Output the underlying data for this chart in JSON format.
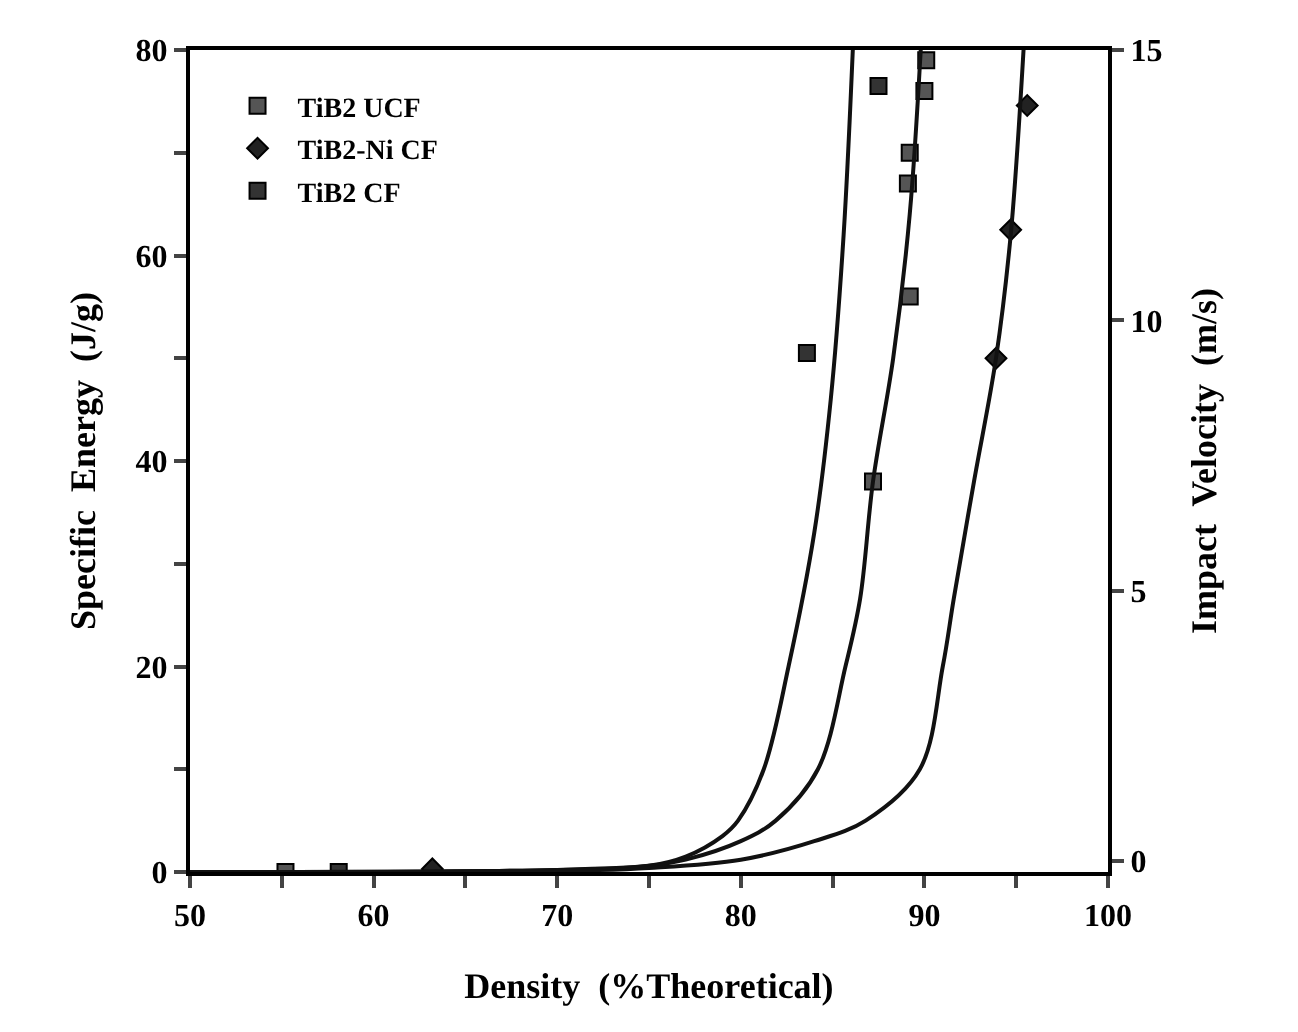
{
  "chart_data": {
    "type": "scatter",
    "xlabel": "Density  (%Theoretical)",
    "ylabel": "Specific  Energy  (J/g)",
    "y2label": "Impact  Velocity  (m/s)",
    "xlim": [
      50,
      100
    ],
    "xticks": [
      50,
      {
        "value": 55,
        "label": null
      },
      60,
      {
        "value": 65,
        "label": null
      },
      70,
      {
        "value": 75,
        "label": null
      },
      80,
      {
        "value": 85,
        "label": null
      },
      90,
      {
        "value": 95,
        "label": null
      },
      100
    ],
    "ylim": [
      0,
      80
    ],
    "yticks": [
      0,
      {
        "value": 10,
        "label": null
      },
      20,
      {
        "value": 30,
        "label": null
      },
      40,
      {
        "value": 50,
        "label": null
      },
      60,
      {
        "value": 70,
        "label": null
      },
      80
    ],
    "y2lim": [
      -0.2,
      15
    ],
    "y2ticks": [
      0,
      5,
      10,
      15
    ],
    "legend": "top left",
    "series": [
      {
        "name": "TiB2 UCF",
        "marker": "square",
        "color": "#555555",
        "x": [
          55.2,
          87.2,
          89.2,
          89.1,
          89.2,
          90.0,
          90.1
        ],
        "values": [
          0,
          38,
          56,
          67,
          70,
          76,
          79
        ]
      },
      {
        "name": "TiB2-Ni CF",
        "marker": "diamond",
        "color": "#222222",
        "x": [
          63.2,
          93.9,
          94.7,
          95.6
        ],
        "values": [
          0.3,
          50,
          62.5,
          74.6
        ]
      },
      {
        "name": "TiB2 CF",
        "marker": "square",
        "color": "#333333",
        "x": [
          58.1,
          83.6,
          87.5
        ],
        "values": [
          0,
          50.5,
          76.5
        ]
      },
      {
        "type": "line",
        "color": "#111111",
        "x": [
          50,
          70,
          75,
          77,
          79,
          79.85,
          81.25,
          82.6,
          84,
          84.9,
          85.6,
          86.1
        ],
        "values": [
          0,
          0.2,
          0.6,
          1.5,
          3.5,
          5,
          10,
          20,
          33,
          46,
          62,
          80
        ]
      },
      {
        "type": "line",
        "color": "#111111",
        "x": [
          50,
          70,
          75,
          77,
          80,
          81.9,
          84.2,
          85.7,
          86.5,
          87.2,
          88.3,
          89.2,
          89.8
        ],
        "values": [
          0,
          0.2,
          0.6,
          1.2,
          3,
          5,
          10,
          20,
          26.6,
          38,
          50,
          64,
          80
        ]
      },
      {
        "type": "line",
        "color": "#111111",
        "x": [
          50,
          70,
          75,
          80,
          84,
          86.8,
          89.75,
          91,
          91.6,
          92.7,
          93.9,
          94.7,
          95.4
        ],
        "values": [
          0,
          0.1,
          0.4,
          1.2,
          3,
          5,
          10,
          20,
          26.6,
          38,
          50,
          62,
          80
        ]
      }
    ]
  }
}
